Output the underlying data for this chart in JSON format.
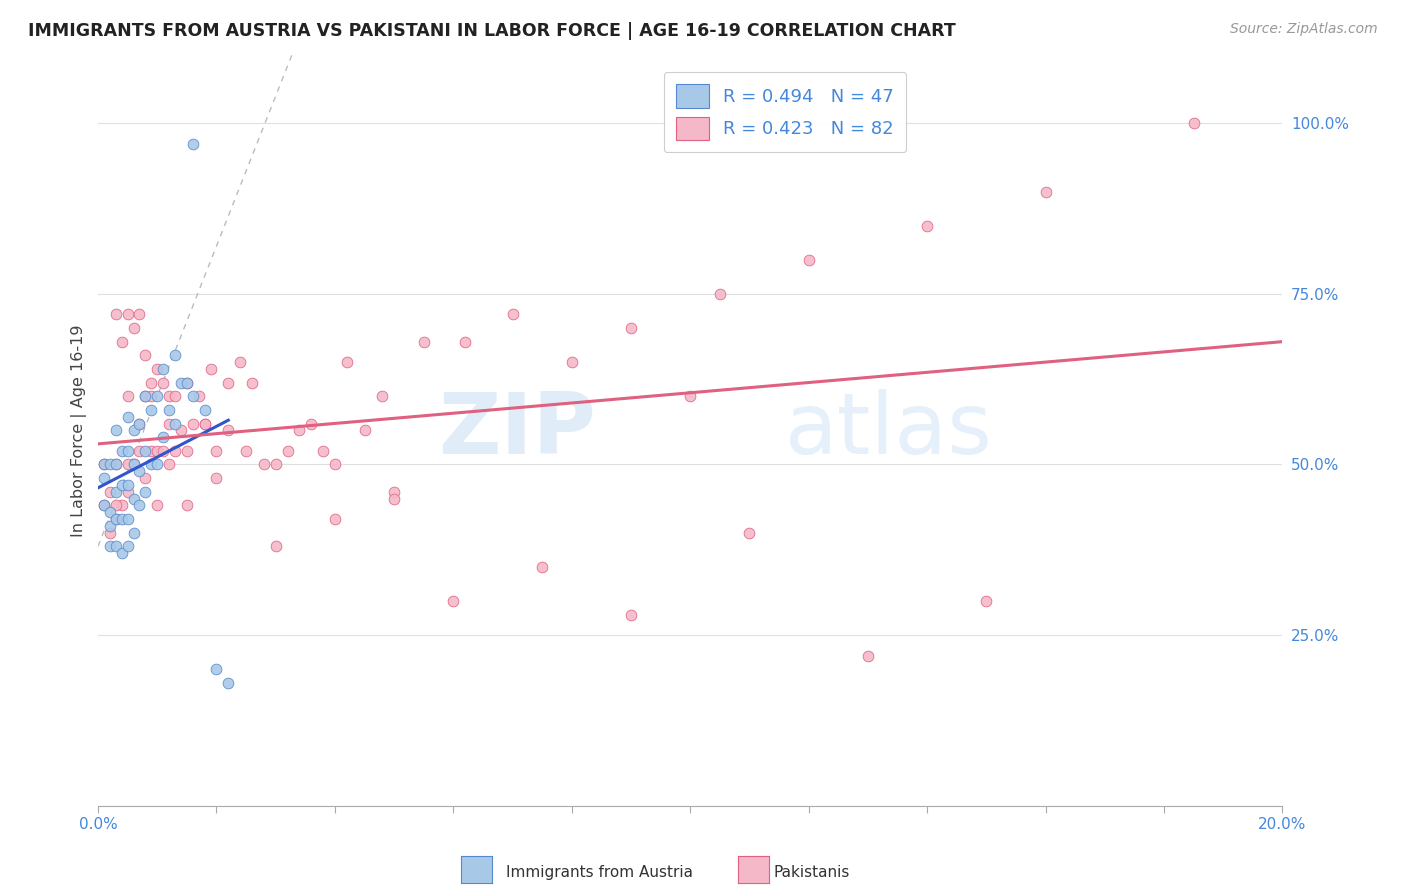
{
  "title": "IMMIGRANTS FROM AUSTRIA VS PAKISTANI IN LABOR FORCE | AGE 16-19 CORRELATION CHART",
  "source": "Source: ZipAtlas.com",
  "ylabel": "In Labor Force | Age 16-19",
  "xlim": [
    0.0,
    0.2
  ],
  "ylim": [
    0.0,
    1.1
  ],
  "austria_color": "#a8c8e8",
  "pakistan_color": "#f5b8c8",
  "austria_edge": "#5588cc",
  "pakistan_edge": "#e06080",
  "austria_line_color": "#3355cc",
  "pakistan_line_color": "#e06080",
  "gray_dash_color": "#bbbbbb",
  "austria_R": 0.494,
  "austria_N": 47,
  "pakistan_R": 0.423,
  "pakistan_N": 82,
  "legend_label_austria": "R = 0.494   N = 47",
  "legend_label_pakistan": "R = 0.423   N = 82",
  "bottom_legend_austria": "Immigrants from Austria",
  "bottom_legend_pakistan": "Pakistanis",
  "watermark_zip": "ZIP",
  "watermark_atlas": "atlas",
  "tick_color": "#4488dd",
  "grid_color": "#e0e0e0",
  "austria_x": [
    0.001,
    0.001,
    0.001,
    0.002,
    0.002,
    0.002,
    0.002,
    0.003,
    0.003,
    0.003,
    0.003,
    0.003,
    0.004,
    0.004,
    0.004,
    0.004,
    0.005,
    0.005,
    0.005,
    0.005,
    0.005,
    0.006,
    0.006,
    0.006,
    0.006,
    0.007,
    0.007,
    0.007,
    0.008,
    0.008,
    0.008,
    0.009,
    0.009,
    0.01,
    0.01,
    0.011,
    0.011,
    0.012,
    0.013,
    0.013,
    0.014,
    0.015,
    0.016,
    0.018,
    0.02,
    0.022,
    0.016
  ],
  "austria_y": [
    0.44,
    0.48,
    0.5,
    0.38,
    0.41,
    0.43,
    0.5,
    0.38,
    0.42,
    0.46,
    0.5,
    0.55,
    0.37,
    0.42,
    0.47,
    0.52,
    0.38,
    0.42,
    0.47,
    0.52,
    0.57,
    0.4,
    0.45,
    0.5,
    0.55,
    0.44,
    0.49,
    0.56,
    0.46,
    0.52,
    0.6,
    0.5,
    0.58,
    0.5,
    0.6,
    0.54,
    0.64,
    0.58,
    0.56,
    0.66,
    0.62,
    0.62,
    0.6,
    0.58,
    0.2,
    0.18,
    0.97
  ],
  "pakistan_x": [
    0.001,
    0.001,
    0.002,
    0.002,
    0.003,
    0.003,
    0.003,
    0.004,
    0.004,
    0.005,
    0.005,
    0.005,
    0.006,
    0.006,
    0.007,
    0.007,
    0.008,
    0.008,
    0.008,
    0.009,
    0.009,
    0.01,
    0.01,
    0.011,
    0.011,
    0.012,
    0.012,
    0.013,
    0.013,
    0.014,
    0.015,
    0.015,
    0.016,
    0.017,
    0.018,
    0.019,
    0.02,
    0.022,
    0.024,
    0.026,
    0.03,
    0.034,
    0.038,
    0.042,
    0.048,
    0.055,
    0.062,
    0.07,
    0.08,
    0.09,
    0.105,
    0.12,
    0.14,
    0.16,
    0.185,
    0.003,
    0.005,
    0.007,
    0.009,
    0.012,
    0.015,
    0.018,
    0.022,
    0.025,
    0.028,
    0.032,
    0.036,
    0.04,
    0.045,
    0.05,
    0.06,
    0.075,
    0.09,
    0.11,
    0.13,
    0.15,
    0.01,
    0.02,
    0.03,
    0.04,
    0.05,
    0.1
  ],
  "pakistan_y": [
    0.44,
    0.5,
    0.4,
    0.46,
    0.42,
    0.5,
    0.72,
    0.44,
    0.68,
    0.46,
    0.6,
    0.72,
    0.5,
    0.7,
    0.52,
    0.72,
    0.48,
    0.6,
    0.66,
    0.52,
    0.62,
    0.52,
    0.64,
    0.52,
    0.62,
    0.5,
    0.6,
    0.52,
    0.6,
    0.55,
    0.52,
    0.62,
    0.56,
    0.6,
    0.56,
    0.64,
    0.52,
    0.55,
    0.65,
    0.62,
    0.5,
    0.55,
    0.52,
    0.65,
    0.6,
    0.68,
    0.68,
    0.72,
    0.65,
    0.7,
    0.75,
    0.8,
    0.85,
    0.9,
    1.0,
    0.44,
    0.5,
    0.56,
    0.6,
    0.56,
    0.44,
    0.56,
    0.62,
    0.52,
    0.5,
    0.52,
    0.56,
    0.5,
    0.55,
    0.46,
    0.3,
    0.35,
    0.28,
    0.4,
    0.22,
    0.3,
    0.44,
    0.48,
    0.38,
    0.42,
    0.45,
    0.6
  ]
}
